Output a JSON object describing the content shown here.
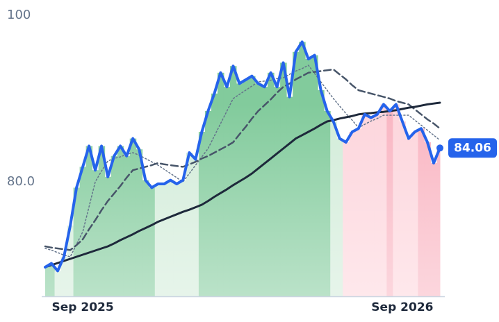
{
  "chart_data": {
    "type": "line",
    "categories": [
      null,
      null,
      null,
      null,
      null,
      null,
      "Sep 2025",
      null,
      null,
      null,
      null,
      null,
      null,
      null,
      null,
      null,
      null,
      null,
      null,
      null,
      null,
      null,
      null,
      null,
      null,
      null,
      null,
      null,
      null,
      null,
      null,
      null,
      null,
      null,
      null,
      null,
      null,
      null,
      null,
      null,
      null,
      null,
      null,
      null,
      null,
      null,
      null,
      null,
      null,
      null,
      null,
      null,
      null,
      null,
      null,
      null,
      null,
      "Sep 2026",
      null,
      null,
      null,
      null,
      null,
      null
    ],
    "ylim": [
      66.25,
      101.75
    ],
    "yticks": [
      {
        "value": 80,
        "label": "80.0"
      },
      100
    ],
    "area_colors": [
      "#82cb9c",
      "#82cb9c",
      "#d2ecd9",
      "#d2ecd9",
      "#d2ecd9",
      "#82cb9c",
      "#82cb9c",
      "#82cb9c",
      "#82cb9c",
      "#82cb9c",
      "#82cb9c",
      "#82cb9c",
      "#82cb9c",
      "#82cb9c",
      "#82cb9c",
      "#82cb9c",
      "#82cb9c",
      "#82cb9c",
      "#d2ecd9",
      "#d2ecd9",
      "#d2ecd9",
      "#d2ecd9",
      "#d2ecd9",
      "#d2ecd9",
      "#d2ecd9",
      "#82cb9c",
      "#82cb9c",
      "#82cb9c",
      "#82cb9c",
      "#82cb9c",
      "#82cb9c",
      "#82cb9c",
      "#82cb9c",
      "#82cb9c",
      "#82cb9c",
      "#82cb9c",
      "#82cb9c",
      "#82cb9c",
      "#82cb9c",
      "#82cb9c",
      "#82cb9c",
      "#82cb9c",
      "#82cb9c",
      "#82cb9c",
      "#82cb9c",
      "#82cb9c",
      "#d2ecd9",
      "#d2ecd9",
      "#fdd5dc",
      "#fdd5dc",
      "#fdd5dc",
      "#fdd5dc",
      "#fdd5dc",
      "#fdd5dc",
      "#fdd5dc",
      "#f9b5c2",
      "#fdd5dc",
      "#fdd5dc",
      "#fdd5dc",
      "#fdd5dc",
      "#f9b5c2",
      "#f9b5c2",
      "#f9b5c2",
      "#f9b5c2"
    ],
    "series": [
      {
        "color": "#2563eb",
        "style": "solid",
        "width": 4,
        "values": [
          69.75,
          70.2,
          69.3,
          71,
          74.75,
          79.3,
          81.8,
          84.3,
          81.4,
          84.3,
          80.6,
          83.1,
          84.3,
          83.1,
          85.2,
          83.9,
          80.2,
          79.3,
          79.75,
          79.75,
          80.2,
          79.75,
          80.2,
          83.5,
          82.7,
          86,
          88.5,
          90.6,
          93.1,
          91.4,
          93.9,
          91.8,
          92.25,
          92.7,
          91.8,
          91.4,
          93.1,
          91.4,
          94.3,
          90.2,
          95.6,
          96.8,
          94.75,
          95.2,
          91,
          88.5,
          87.25,
          85.2,
          84.75,
          86,
          86.4,
          88.1,
          87.7,
          88.1,
          89.3,
          88.5,
          89.3,
          87.25,
          85.2,
          86,
          86.4,
          84.75,
          82.25,
          84.06
        ]
      },
      {
        "color": "#1e293b",
        "style": "solid",
        "width": 3,
        "values": [
          69.75,
          70,
          70.25,
          70.5,
          70.75,
          71,
          71.25,
          71.5,
          71.75,
          72,
          72.25,
          72.6,
          73,
          73.35,
          73.7,
          74.1,
          74.45,
          74.8,
          75.2,
          75.5,
          75.8,
          76.1,
          76.4,
          76.65,
          76.95,
          77.25,
          77.7,
          78.2,
          78.65,
          79.1,
          79.6,
          80.05,
          80.5,
          81,
          81.6,
          82.2,
          82.8,
          83.4,
          84,
          84.6,
          85.2,
          85.6,
          86,
          86.4,
          86.85,
          87.25,
          87.4,
          87.6,
          87.75,
          87.9,
          88.1,
          88.2,
          88.25,
          88.35,
          88.4,
          88.5,
          88.6,
          88.75,
          88.9,
          89,
          89.15,
          89.3,
          89.4,
          89.5
        ]
      },
      {
        "color": "#475569",
        "style": "dashed",
        "width": 2.5,
        "values": [
          72.25,
          72.1,
          72,
          71.9,
          71.8,
          72.4,
          73.1,
          74.3,
          75.4,
          76.6,
          77.7,
          78.6,
          79.5,
          80.5,
          81.4,
          81.6,
          81.8,
          82,
          82.25,
          82.1,
          82,
          81.9,
          81.8,
          82.1,
          82.4,
          82.8,
          83.1,
          83.5,
          83.9,
          84.3,
          84.75,
          85.7,
          86.6,
          87.6,
          88.5,
          89.2,
          89.9,
          90.7,
          91.4,
          91.8,
          92.3,
          92.7,
          93.1,
          93.2,
          93.3,
          93.4,
          93.5,
          92.9,
          92.3,
          91.6,
          91,
          90.8,
          90.6,
          90.4,
          90.2,
          90,
          89.7,
          89.5,
          89.3,
          88.7,
          88.1,
          87.5,
          87,
          86.4
        ]
      },
      {
        "color": "#64748b",
        "style": "dotted",
        "width": 1.5,
        "values": [
          72,
          71.8,
          71.5,
          71.2,
          71,
          72.5,
          74,
          77,
          80,
          81.3,
          82.5,
          82.8,
          83,
          83.3,
          83.5,
          83.2,
          82.8,
          82.4,
          82,
          81.5,
          81,
          80.5,
          80,
          81,
          82,
          83,
          84,
          85.5,
          87,
          88.5,
          90,
          90.5,
          91,
          91.5,
          92,
          92.1,
          92.2,
          92.4,
          92.5,
          92.9,
          93.3,
          93.6,
          94,
          93,
          92,
          91,
          90,
          89.1,
          88.2,
          87.4,
          86.5,
          86.9,
          87.3,
          87.6,
          88,
          88,
          88,
          88,
          88,
          87.4,
          86.8,
          86.2,
          85.6,
          85
        ]
      }
    ],
    "last_label_color": "#2563eb"
  }
}
